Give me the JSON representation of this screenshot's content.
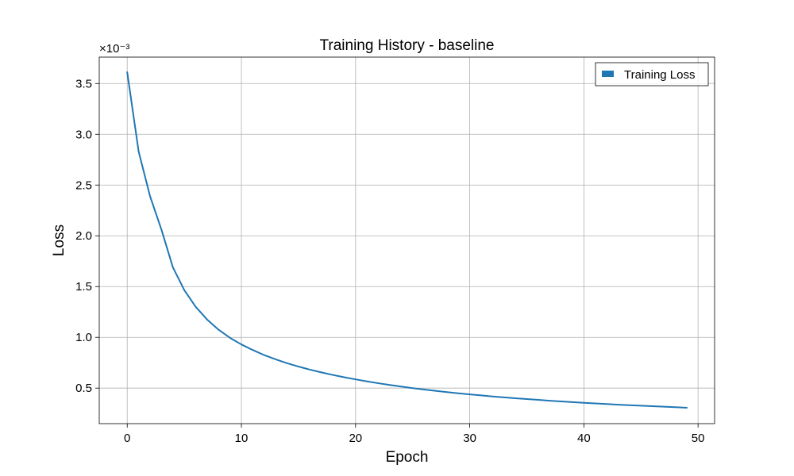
{
  "chart_data": {
    "type": "line",
    "title": "Training History - baseline",
    "xlabel": "Epoch",
    "ylabel": "Loss",
    "y_offset_label": "×10⁻³",
    "xlim": [
      -2.45,
      51.45
    ],
    "ylim": [
      0.00015,
      0.00376
    ],
    "x_ticks": [
      0,
      10,
      20,
      30,
      40,
      50
    ],
    "y_ticks": [
      0.0005,
      0.001,
      0.0015,
      0.002,
      0.0025,
      0.003,
      0.0035
    ],
    "y_tick_labels": [
      "0.5",
      "1.0",
      "1.5",
      "2.0",
      "2.5",
      "3.0",
      "3.5"
    ],
    "x_tick_labels": [
      "0",
      "10",
      "20",
      "30",
      "40",
      "50"
    ],
    "grid": true,
    "legend_position": "top-right",
    "series": [
      {
        "name": "Training Loss",
        "color": "#1f77b4",
        "x": [
          0,
          1,
          2,
          3,
          4,
          5,
          6,
          7,
          8,
          9,
          10,
          11,
          12,
          13,
          14,
          15,
          16,
          17,
          18,
          19,
          20,
          21,
          22,
          23,
          24,
          25,
          26,
          27,
          28,
          29,
          30,
          31,
          32,
          33,
          34,
          35,
          36,
          37,
          38,
          39,
          40,
          41,
          42,
          43,
          44,
          45,
          46,
          47,
          48,
          49
        ],
        "y": [
          0.00361,
          0.00283,
          0.00239,
          0.00206,
          0.00169,
          0.001465,
          0.0013,
          0.001175,
          0.001075,
          0.000995,
          0.00093,
          0.000875,
          0.000825,
          0.000783,
          0.000745,
          0.000712,
          0.000682,
          0.000655,
          0.00063,
          0.000607,
          0.000586,
          0.000566,
          0.000548,
          0.000531,
          0.000515,
          0.0005,
          0.000486,
          0.000473,
          0.000461,
          0.000449,
          0.000438,
          0.000428,
          0.000418,
          0.000409,
          0.0004,
          0.000392,
          0.000384,
          0.000376,
          0.000369,
          0.000362,
          0.000355,
          0.000349,
          0.000343,
          0.000337,
          0.000332,
          0.000327,
          0.000322,
          0.000317,
          0.000312,
          0.000307
        ]
      }
    ]
  }
}
